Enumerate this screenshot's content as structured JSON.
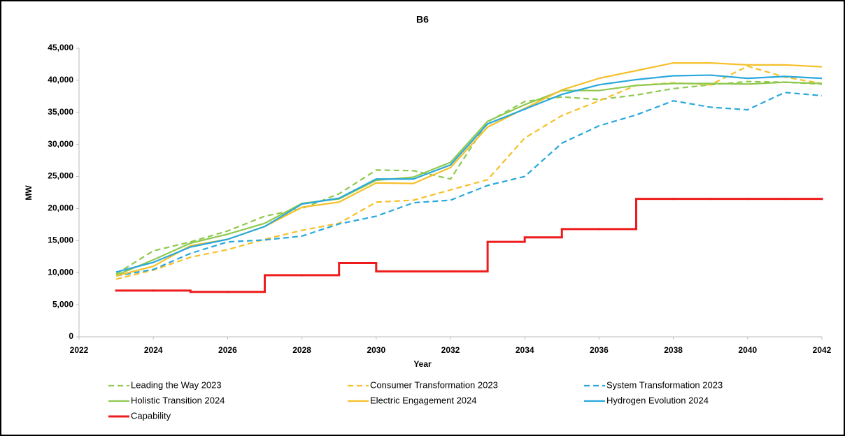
{
  "chart_data": {
    "type": "line",
    "title": "B6",
    "x_label": "Year",
    "y_label": "MW",
    "x": [
      2023,
      2024,
      2025,
      2026,
      2027,
      2028,
      2029,
      2030,
      2031,
      2032,
      2033,
      2034,
      2035,
      2036,
      2037,
      2038,
      2039,
      2040,
      2041,
      2042
    ],
    "xlim": [
      2022,
      2042
    ],
    "xticks": [
      2022,
      2024,
      2026,
      2028,
      2030,
      2032,
      2034,
      2036,
      2038,
      2040,
      2042
    ],
    "ylim": [
      0,
      45000
    ],
    "yticks": [
      0,
      {
        "value": 5000,
        "label": "5,000"
      },
      {
        "value": 10000,
        "label": "10,000"
      },
      {
        "value": 15000,
        "label": "15,000"
      },
      {
        "value": 20000,
        "label": "20,000"
      },
      {
        "value": 25000,
        "label": "25,000"
      },
      {
        "value": 30000,
        "label": "30,000"
      },
      {
        "value": 35000,
        "label": "35,000"
      },
      {
        "value": 40000,
        "label": "40,000"
      },
      {
        "value": 45000,
        "label": "45,000"
      }
    ],
    "grid": false,
    "legend": "bottom",
    "series": [
      {
        "name": "Leading the Way 2023",
        "color": "#8fc94f",
        "dashed": true,
        "values": [
          9800,
          13400,
          14800,
          16500,
          18800,
          20000,
          22300,
          26000,
          25900,
          24600,
          33500,
          36700,
          37400,
          37000,
          37700,
          38700,
          39300,
          39800,
          39700,
          39400
        ]
      },
      {
        "name": "Consumer Transformation 2023",
        "color": "#f5c02a",
        "dashed": true,
        "values": [
          9000,
          10400,
          12400,
          13600,
          15200,
          16600,
          17700,
          21000,
          21300,
          22900,
          24500,
          31000,
          34500,
          36800,
          39200,
          39600,
          39300,
          42200,
          40500,
          39500
        ]
      },
      {
        "name": "System Transformation 2023",
        "color": "#28a8dc",
        "dashed": true,
        "values": [
          9500,
          10500,
          13000,
          14800,
          15100,
          15700,
          17600,
          18800,
          20900,
          21300,
          23600,
          25000,
          30200,
          32900,
          34600,
          36800,
          35800,
          35400,
          38100,
          37600
        ]
      },
      {
        "name": "Holistic Transition 2024",
        "color": "#8fc94f",
        "dashed": false,
        "values": [
          9600,
          12000,
          14600,
          16000,
          17700,
          20800,
          21500,
          24400,
          24900,
          27200,
          33600,
          36200,
          38400,
          38400,
          39200,
          39500,
          39500,
          39400,
          39700,
          39500
        ]
      },
      {
        "name": "Electric Engagement 2024",
        "color": "#f5c02a",
        "dashed": false,
        "values": [
          9500,
          11000,
          14200,
          15200,
          17200,
          20200,
          21000,
          24000,
          23900,
          26400,
          32700,
          35600,
          38500,
          40300,
          41500,
          42700,
          42700,
          42400,
          42400,
          42100
        ]
      },
      {
        "name": "Hydrogen Evolution 2024",
        "color": "#28a8dc",
        "dashed": false,
        "values": [
          10100,
          11600,
          14000,
          15200,
          17200,
          20700,
          21600,
          24600,
          24600,
          26800,
          33200,
          35500,
          37800,
          39300,
          40100,
          40700,
          40800,
          40300,
          40600,
          40300
        ]
      },
      {
        "name": "Capability",
        "color": "#ee1c1c",
        "dashed": false,
        "step": "post",
        "values": [
          7200,
          7200,
          7000,
          7000,
          9600,
          9600,
          11500,
          10200,
          10200,
          10200,
          14800,
          15500,
          16800,
          16800,
          21500,
          21500,
          21500,
          21500,
          21500,
          21500
        ]
      }
    ]
  }
}
